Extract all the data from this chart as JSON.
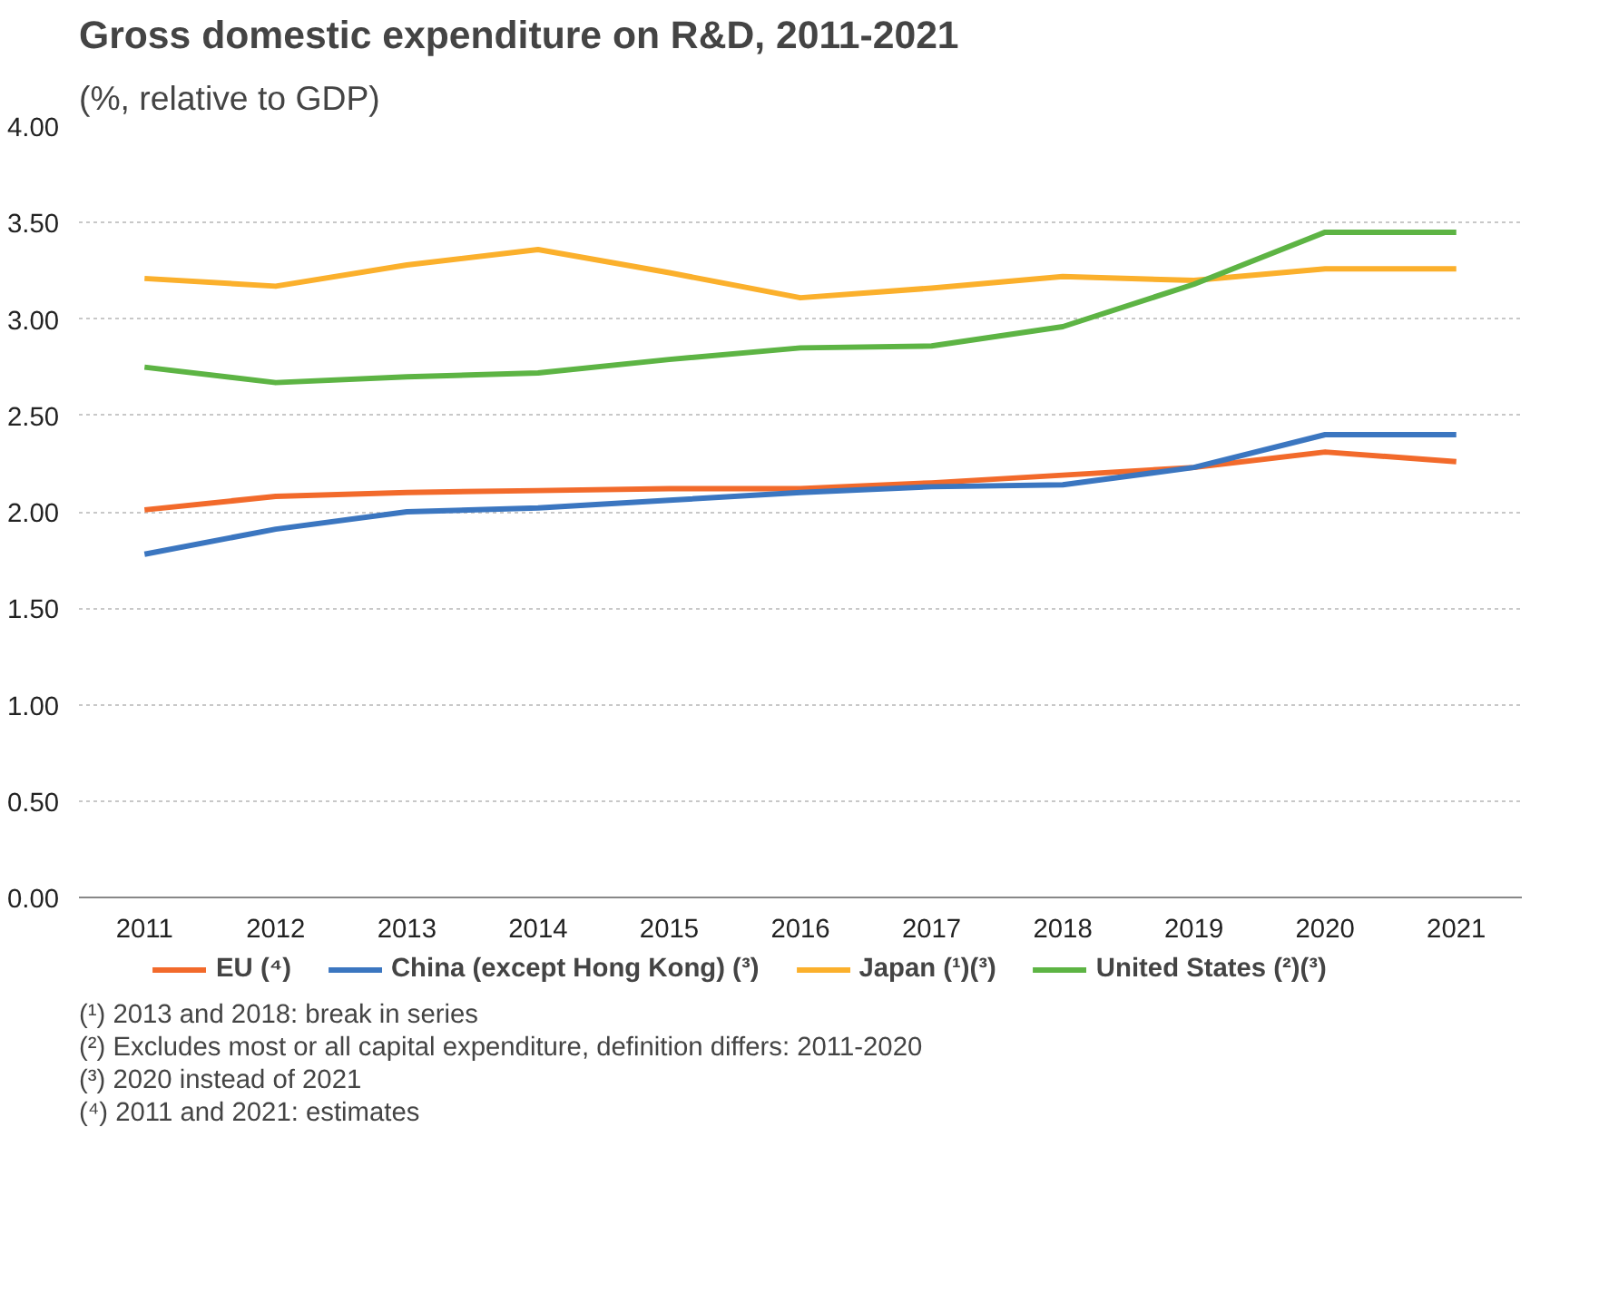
{
  "chart_data": {
    "type": "line",
    "title": "Gross domestic expenditure on R&D, 2011-2021",
    "subtitle": "(%, relative to GDP)",
    "categories": [
      "2011",
      "2012",
      "2013",
      "2014",
      "2015",
      "2016",
      "2017",
      "2018",
      "2019",
      "2020",
      "2021"
    ],
    "series": [
      {
        "name": "EU (⁴)",
        "color": "#f26a2b",
        "values": [
          2.01,
          2.08,
          2.1,
          2.11,
          2.12,
          2.12,
          2.15,
          2.19,
          2.23,
          2.31,
          2.26
        ]
      },
      {
        "name": "China (except Hong Kong) (³)",
        "color": "#3b76c0",
        "values": [
          1.78,
          1.91,
          2.0,
          2.02,
          2.06,
          2.1,
          2.13,
          2.14,
          2.23,
          2.4,
          2.4
        ]
      },
      {
        "name": "Japan (¹)(³)",
        "color": "#fbb02c",
        "values": [
          3.21,
          3.17,
          3.28,
          3.36,
          3.24,
          3.11,
          3.16,
          3.22,
          3.2,
          3.26,
          3.26
        ]
      },
      {
        "name": "United States (²)(³)",
        "color": "#5db444",
        "values": [
          2.75,
          2.67,
          2.7,
          2.72,
          2.79,
          2.85,
          2.86,
          2.96,
          3.18,
          3.45,
          3.45
        ]
      }
    ],
    "ylim": [
      0,
      4
    ],
    "yticks": [
      {
        "value": 0,
        "label": "0.00"
      },
      {
        "value": 0.5,
        "label": "0.50"
      },
      {
        "value": 1,
        "label": "1.00"
      },
      {
        "value": 1.5,
        "label": "1.50"
      },
      {
        "value": 2,
        "label": "2.00"
      },
      {
        "value": 2.5,
        "label": "2.50"
      },
      {
        "value": 3,
        "label": "3.00"
      },
      {
        "value": 3.5,
        "label": "3.50"
      },
      {
        "value": 4,
        "label": "4.00"
      }
    ],
    "grid": "y",
    "legend": "bottom",
    "line_style": "solid",
    "marker": "none",
    "annotations": [
      "(¹) 2013 and 2018: break in series",
      "(²) Excludes most or all capital expenditure, definition differs: 2011-2020",
      "(³) 2020 instead of 2021",
      "(⁴) 2011 and 2021: estimates"
    ]
  }
}
